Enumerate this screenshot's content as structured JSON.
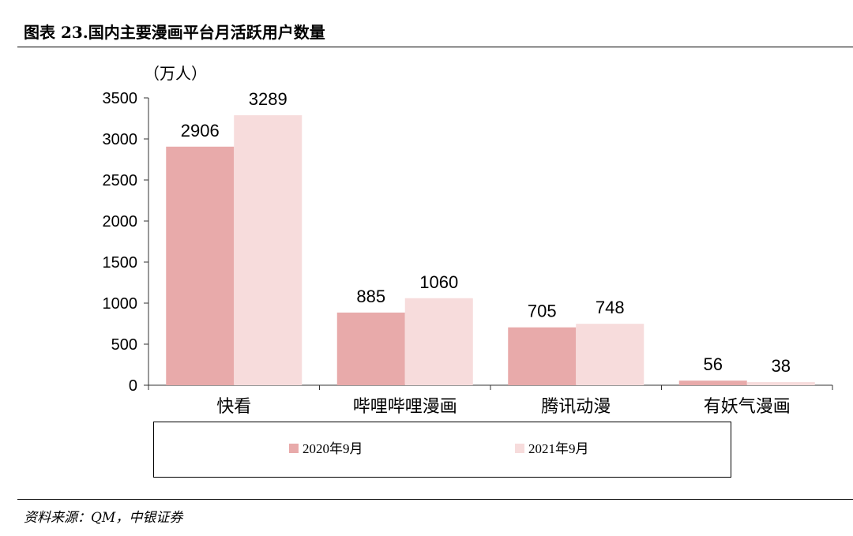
{
  "figure": {
    "title": "图表 23.国内主要漫画平台月活跃用户数量",
    "source": "资料来源：QM，中银证券"
  },
  "chart_data": {
    "type": "bar",
    "unit": "（万人）",
    "categories": [
      "快看",
      "哔哩哔哩漫画",
      "腾讯动漫",
      "有妖气漫画"
    ],
    "series": [
      {
        "name": "2020年9月",
        "values": [
          2906,
          885,
          705,
          56
        ],
        "color": "#e8aaaa"
      },
      {
        "name": "2021年9月",
        "values": [
          3289,
          1060,
          748,
          38
        ],
        "color": "#f7dcdc"
      }
    ],
    "ylim": [
      0,
      3500
    ],
    "yticks": [
      0,
      500,
      1000,
      1500,
      2000,
      2500,
      3000,
      3500
    ],
    "grid": false,
    "legend_position": "bottom",
    "xlabel": "",
    "ylabel": "（万人）"
  }
}
